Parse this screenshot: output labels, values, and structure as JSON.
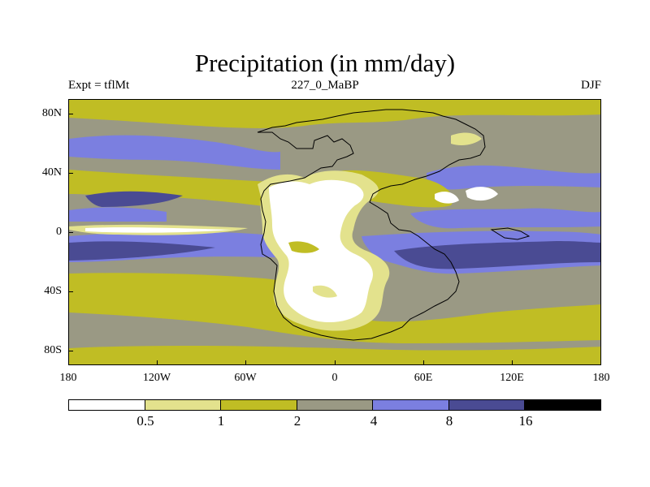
{
  "title": "Precipitation (in mm/day)",
  "subtitle_left": "Expt = tflMt",
  "subtitle_center": "227_0_MaBP",
  "subtitle_right": "DJF",
  "y_ticks": [
    "80N",
    "40N",
    "0",
    "40S",
    "80S"
  ],
  "x_ticks": [
    "180",
    "120W",
    "60W",
    "0",
    "60E",
    "120E",
    "180"
  ],
  "colorbar": {
    "colors": [
      "#ffffff",
      "#e3e28d",
      "#c0bd24",
      "#9a9984",
      "#7b7fe0",
      "#4a4b93",
      "#000000"
    ],
    "labels": [
      "0.5",
      "1",
      "2",
      "4",
      "8",
      "16"
    ]
  },
  "colors": {
    "ocean_high": "#c0bd24",
    "moderate": "#9a9984",
    "wet": "#7b7fe0",
    "very_wet": "#4a4b93",
    "dry": "#e3e28d",
    "very_dry": "#ffffff",
    "coast": "#000000"
  }
}
